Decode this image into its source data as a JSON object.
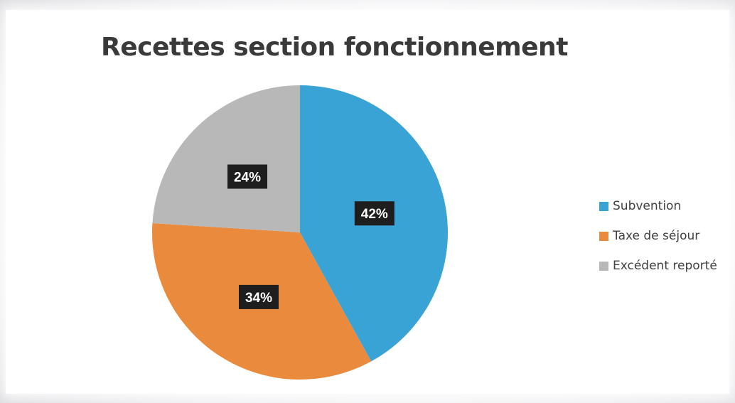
{
  "chart_data": {
    "type": "pie",
    "title": "Recettes section fonctionnement",
    "slices": [
      {
        "label": "Subvention",
        "value": 42,
        "data_label": "42%",
        "color": "#3aa3d6"
      },
      {
        "label": "Taxe de séjour",
        "value": 34,
        "data_label": "34%",
        "color": "#e98a3c"
      },
      {
        "label": "Excédent reporté",
        "value": 24,
        "data_label": "24%",
        "color": "#b8b8b8"
      }
    ],
    "legend_position": "right"
  }
}
